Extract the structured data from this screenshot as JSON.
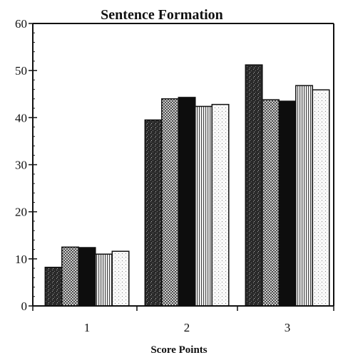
{
  "chart_data": {
    "type": "bar",
    "title": "Sentence Formation",
    "xlabel": "Score Points",
    "ylabel": "",
    "categories": [
      "1",
      "2",
      "3"
    ],
    "ylim": [
      0,
      60
    ],
    "yticks": [
      0,
      10,
      20,
      30,
      40,
      50,
      60
    ],
    "grid": false,
    "legend": "none",
    "series": [
      {
        "values": [
          8.2,
          39.5,
          51.2
        ],
        "fill": "speckle-dark"
      },
      {
        "values": [
          12.5,
          44.0,
          43.8
        ],
        "fill": "crosshatch"
      },
      {
        "values": [
          12.4,
          44.3,
          43.5
        ],
        "fill": "solid-black"
      },
      {
        "values": [
          11.0,
          42.4,
          46.8
        ],
        "fill": "vertical-stripes"
      },
      {
        "values": [
          11.6,
          42.8,
          45.9
        ],
        "fill": "light-dots"
      }
    ]
  }
}
